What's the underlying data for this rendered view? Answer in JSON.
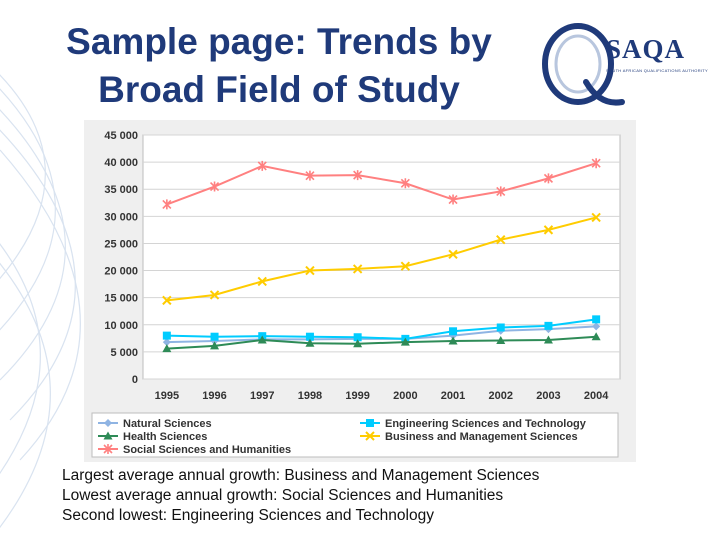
{
  "slide": {
    "title_line1": "Sample page: Trends by",
    "title_line2": "Broad Field of Study",
    "logo_text": "SAQA",
    "logo_subtext": "SOUTH AFRICAN QUALIFICATIONS AUTHORITY",
    "captions": [
      "Largest average annual growth: Business and Management Sciences",
      "Lowest average annual growth: Social Sciences and Humanities",
      "Second lowest: Engineering Sciences and Technology"
    ],
    "colors": {
      "title": "#1f3a7a",
      "chart_background": "#efefef",
      "plot_background": "#ffffff"
    }
  },
  "chart_data": {
    "type": "line",
    "title": "",
    "xlabel": "",
    "ylabel": "",
    "x": [
      "1995",
      "1996",
      "1997",
      "1998",
      "1999",
      "2000",
      "2001",
      "2002",
      "2003",
      "2004"
    ],
    "ylim": [
      0,
      45000
    ],
    "y_ticks": [
      "0",
      "5 000",
      "10 000",
      "15 000",
      "20 000",
      "25 000",
      "30 000",
      "35 000",
      "40 000",
      "45 000"
    ],
    "y_tick_values": [
      0,
      5000,
      10000,
      15000,
      20000,
      25000,
      30000,
      35000,
      40000,
      45000
    ],
    "grid": true,
    "legend_position": "bottom",
    "series": [
      {
        "name": "Natural Sciences",
        "color": "#8fb4e3",
        "marker": "diamond",
        "values": [
          6800,
          7000,
          7300,
          7300,
          7400,
          7400,
          8000,
          8900,
          9200,
          9700
        ]
      },
      {
        "name": "Engineering Sciences and Technology",
        "color": "#00ccff",
        "marker": "square",
        "values": [
          8000,
          7800,
          7900,
          7800,
          7700,
          7400,
          8800,
          9500,
          9800,
          11000
        ]
      },
      {
        "name": "Health Sciences",
        "color": "#2e8b57",
        "marker": "triangle",
        "values": [
          5600,
          6100,
          7200,
          6600,
          6500,
          6800,
          7000,
          7100,
          7200,
          7800
        ]
      },
      {
        "name": "Business and Management Sciences",
        "color": "#ffcc00",
        "marker": "x",
        "values": [
          14500,
          15500,
          18000,
          20000,
          20300,
          20800,
          23000,
          25700,
          27500,
          29800
        ]
      },
      {
        "name": "Social Sciences and Humanities",
        "color": "#ff8080",
        "marker": "star",
        "values": [
          32200,
          35500,
          39300,
          37500,
          37600,
          36100,
          33100,
          34600,
          37000,
          39800
        ]
      }
    ]
  }
}
